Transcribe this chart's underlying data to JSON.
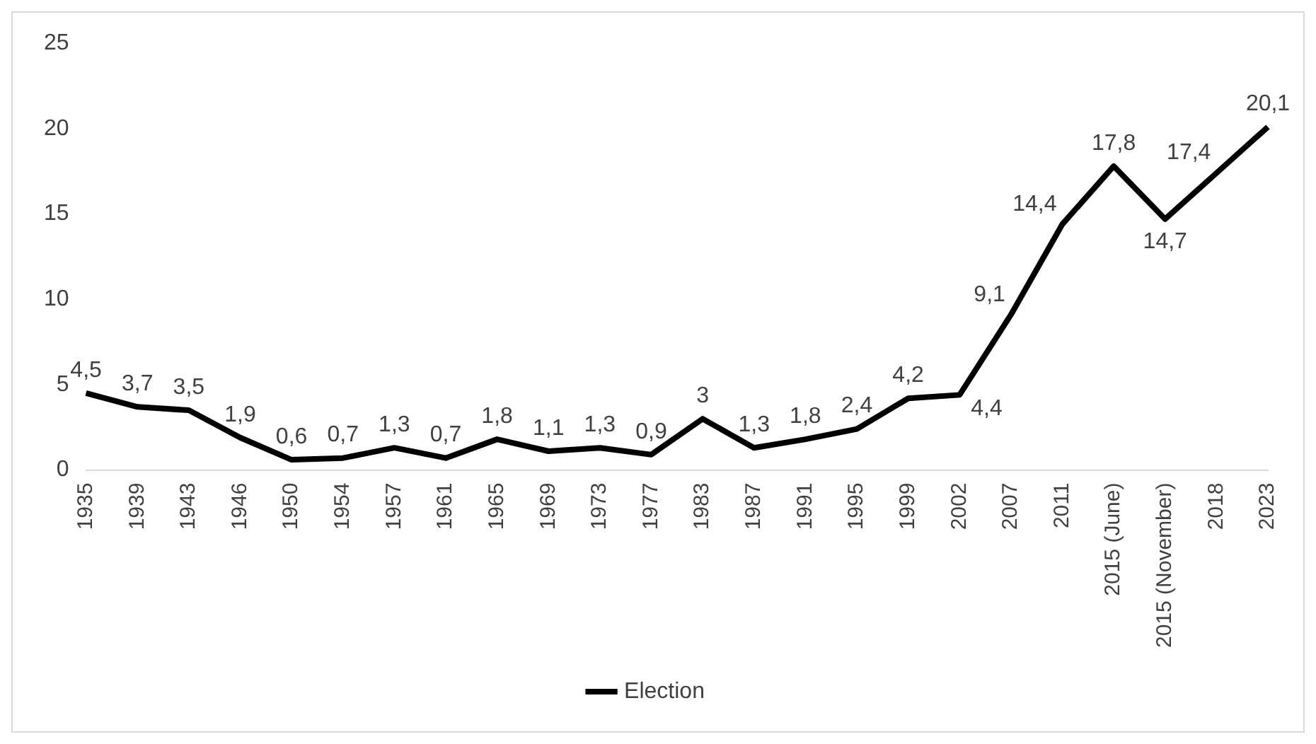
{
  "chart_data": {
    "type": "line",
    "categories": [
      "1935",
      "1939",
      "1943",
      "1946",
      "1950",
      "1954",
      "1957",
      "1961",
      "1965",
      "1969",
      "1973",
      "1977",
      "1983",
      "1987",
      "1991",
      "1995",
      "1999",
      "2002",
      "2007",
      "2011",
      "2015 (June)",
      "2015 (November)",
      "2018",
      "2023"
    ],
    "series": [
      {
        "name": "Election",
        "color": "#000000",
        "values": [
          4.5,
          3.7,
          3.5,
          1.9,
          0.6,
          0.7,
          1.3,
          0.7,
          1.8,
          1.1,
          1.3,
          0.9,
          3,
          1.3,
          1.8,
          2.4,
          4.2,
          4.4,
          9.1,
          14.4,
          17.8,
          14.7,
          17.4,
          20.1
        ],
        "value_labels": [
          "4,5",
          "3,7",
          "3,5",
          "1,9",
          "0,6",
          "0,7",
          "1,3",
          "0,7",
          "1,8",
          "1,1",
          "1,3",
          "0,9",
          "3",
          "1,3",
          "1,8",
          "2,4",
          "4,2",
          "4,4",
          "9,1",
          "14,4",
          "17,8",
          "14,7",
          "17,4",
          "20,1"
        ]
      }
    ],
    "ylim": [
      0,
      25
    ],
    "yticks": [
      0,
      5,
      10,
      15,
      20,
      25
    ],
    "grid": false,
    "legend": "bottom",
    "marker": "none",
    "line_style": "solid"
  }
}
